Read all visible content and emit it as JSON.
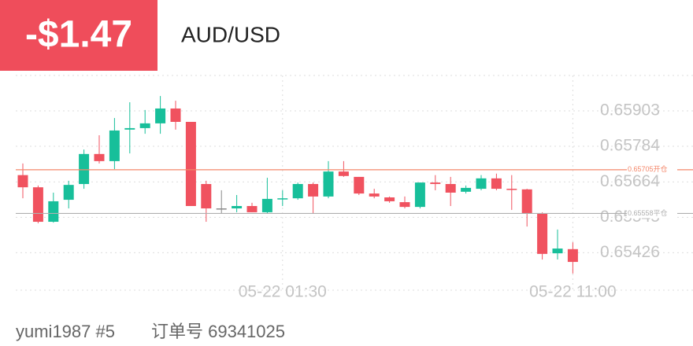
{
  "header": {
    "pnl": "-$1.47",
    "symbol": "AUD/USD"
  },
  "chart_data": {
    "type": "candlestick",
    "categories": [
      null,
      null,
      null,
      null,
      null,
      null,
      null,
      null,
      null,
      null,
      null,
      null,
      null,
      null,
      null,
      null,
      null,
      "05-22 01:30",
      null,
      null,
      null,
      null,
      null,
      null,
      null,
      null,
      null,
      null,
      null,
      null,
      null,
      null,
      null,
      null,
      null,
      null,
      "05-22 11:00"
    ],
    "open": [
      0.65687,
      0.65646,
      0.6553,
      0.65604,
      0.65657,
      0.65758,
      0.65734,
      0.6584,
      0.65845,
      0.65861,
      0.65911,
      0.65866,
      0.65657,
      0.65575,
      0.65575,
      0.65583,
      0.65562,
      0.65607,
      0.65609,
      0.65657,
      0.65615,
      0.65699,
      0.65681,
      0.65625,
      0.65612,
      0.65596,
      0.6558,
      0.65662,
      0.65657,
      0.65631,
      0.65641,
      0.65676,
      0.65641,
      0.65639,
      0.65559,
      0.65424,
      0.65438
    ],
    "high": [
      0.65726,
      0.65652,
      0.65628,
      0.65668,
      0.65773,
      0.65821,
      0.65879,
      0.65932,
      0.65906,
      0.65953,
      0.65937,
      0.65866,
      0.65668,
      0.65636,
      0.6562,
      0.65594,
      0.65678,
      0.65636,
      0.65662,
      0.65662,
      0.65734,
      0.65734,
      0.65681,
      0.65641,
      0.65615,
      0.65615,
      0.65662,
      0.65687,
      0.65681,
      0.65652,
      0.65687,
      0.65692,
      0.65687,
      0.65641,
      0.65562,
      0.65504,
      0.65461
    ],
    "low": [
      0.65609,
      0.65525,
      0.65527,
      0.65575,
      0.65641,
      0.65726,
      0.65707,
      0.6576,
      0.65826,
      0.65826,
      0.6584,
      0.65583,
      0.6553,
      0.65557,
      0.65562,
      0.65562,
      0.65557,
      0.65583,
      0.65604,
      0.65557,
      0.65609,
      0.65681,
      0.6562,
      0.65609,
      0.65594,
      0.65575,
      0.65575,
      0.65636,
      0.65583,
      0.65625,
      0.65636,
      0.65636,
      0.6557,
      0.65514,
      0.65403,
      0.65403,
      0.65356
    ],
    "close": [
      0.65646,
      0.6553,
      0.65599,
      0.65654,
      0.65758,
      0.65734,
      0.65837,
      0.65845,
      0.65861,
      0.65911,
      0.65866,
      0.65583,
      0.65575,
      0.65575,
      0.65583,
      0.65562,
      0.65607,
      0.65609,
      0.65657,
      0.65615,
      0.65699,
      0.65684,
      0.65625,
      0.65615,
      0.65599,
      0.6558,
      0.65662,
      0.65657,
      0.65628,
      0.65644,
      0.65676,
      0.65641,
      0.65639,
      0.65559,
      0.65422,
      0.6544,
      0.65395
    ],
    "up_color": "#17bf9a",
    "down_color": "#f0525f",
    "flat_color": "#888888",
    "ylim": [
      0.653,
      0.66022
    ],
    "yticks": [
      0.65903,
      0.65784,
      0.65664,
      0.65545,
      0.65426
    ],
    "grid": true,
    "reference_lines": [
      {
        "value": 0.65705,
        "label": "0.65705开仓",
        "color": "#f4876a"
      },
      {
        "value": 0.65558,
        "label": "0.65558平仓",
        "color": "#b0b0b0"
      }
    ]
  },
  "footer": {
    "user": "yumi1987 #5",
    "order": "订单号 69341025"
  }
}
